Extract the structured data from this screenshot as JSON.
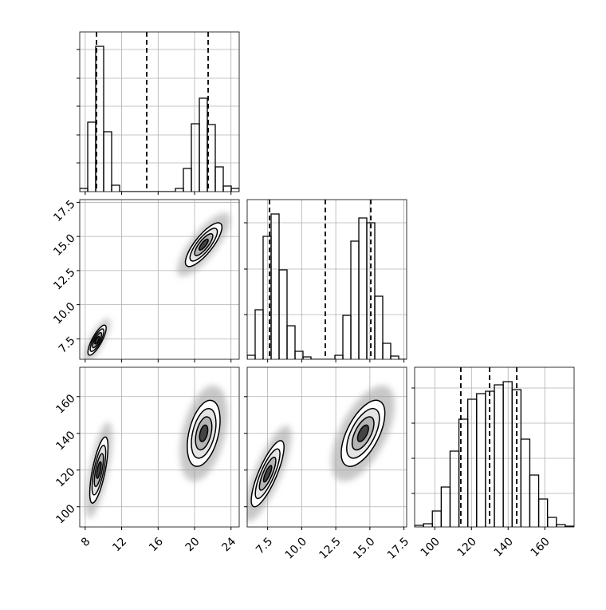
{
  "chart_data": [
    {
      "type": "histogram",
      "xlim": [
        7.4,
        24.9
      ],
      "ylim": [
        0,
        1000
      ],
      "xticks": [
        8,
        12,
        16,
        20,
        24
      ],
      "yticks": [
        180,
        355,
        535,
        710,
        890
      ],
      "bins": [
        7.4,
        8.275,
        9.15,
        10.025,
        10.9,
        11.775,
        12.65,
        13.525,
        14.4,
        15.275,
        16.15,
        17.025,
        17.9,
        18.775,
        19.65,
        20.525,
        21.4,
        22.275,
        23.15,
        24.025,
        24.9
      ],
      "counts": [
        20,
        435,
        910,
        375,
        40,
        0,
        0,
        0,
        0,
        0,
        0,
        0,
        20,
        145,
        425,
        585,
        420,
        155,
        35,
        20
      ],
      "quantiles": [
        9.24,
        14.75,
        21.49
      ],
      "grid": true,
      "color": "#000000"
    },
    {
      "type": "hist2d",
      "xlim": [
        7.4,
        24.9
      ],
      "ylim": [
        6.0,
        17.7
      ],
      "xticks": [
        8,
        12,
        16,
        20,
        24
      ],
      "yticks": [
        7.5,
        {
          "value": 10,
          "label": "10.0"
        },
        12.5,
        {
          "value": 15,
          "label": "15.0"
        },
        17.5
      ],
      "clusters": [
        {
          "x": 9.3,
          "y": 7.4,
          "sx": 0.5,
          "sy": 0.55,
          "corr": 0.8
        },
        {
          "x": 21.0,
          "y": 14.4,
          "sx": 1.0,
          "sy": 0.8,
          "corr": 0.8
        }
      ],
      "grid": true
    },
    {
      "type": "histogram",
      "xlim": [
        6.0,
        17.7
      ],
      "ylim": [
        0,
        1000
      ],
      "xticks": [
        7.5,
        10,
        12.5,
        15,
        17.5
      ],
      "yticks": [
        280,
        565,
        855
      ],
      "bins": [
        6.0,
        6.585,
        7.17,
        7.755,
        8.34,
        8.925,
        9.51,
        10.095,
        10.68,
        11.265,
        11.85,
        12.435,
        13.02,
        13.605,
        14.19,
        14.775,
        15.36,
        15.945,
        16.53,
        17.115,
        17.7
      ],
      "counts": [
        25,
        310,
        770,
        910,
        560,
        210,
        50,
        15,
        0,
        0,
        0,
        25,
        275,
        740,
        885,
        855,
        395,
        100,
        20,
        0
      ],
      "quantiles": [
        7.64,
        11.73,
        15.07
      ],
      "grid": true,
      "color": "#000000"
    },
    {
      "type": "hist2d",
      "xlim": [
        7.4,
        24.9
      ],
      "ylim": [
        89,
        176
      ],
      "xticks": [
        8,
        12,
        16,
        20,
        24
      ],
      "yticks": [
        100,
        120,
        140,
        160
      ],
      "clusters": [
        {
          "x": 9.5,
          "y": 120,
          "sx": 0.5,
          "sy": 9,
          "corr": 0.7
        },
        {
          "x": 21.0,
          "y": 140,
          "sx": 0.9,
          "sy": 9,
          "corr": 0.4
        }
      ],
      "grid": true
    },
    {
      "type": "hist2d",
      "xlim": [
        6.0,
        17.7
      ],
      "ylim": [
        89,
        176
      ],
      "xticks": [
        7.5,
        {
          "value": 10,
          "label": "10.0"
        },
        12.5,
        {
          "value": 15,
          "label": "15.0"
        },
        17.5
      ],
      "yticks": [
        100,
        120,
        140,
        160
      ],
      "clusters": [
        {
          "x": 7.5,
          "y": 118,
          "sx": 0.6,
          "sy": 9,
          "corr": 0.8
        },
        {
          "x": 14.5,
          "y": 140,
          "sx": 0.8,
          "sy": 9,
          "corr": 0.6
        }
      ],
      "grid": true
    },
    {
      "type": "histogram",
      "xlim": [
        89,
        176
      ],
      "ylim": [
        0,
        1000
      ],
      "xticks": [
        100,
        120,
        140,
        160
      ],
      "yticks": [
        210,
        430,
        650,
        870
      ],
      "bins": [
        89,
        93.83,
        98.67,
        103.5,
        108.33,
        113.17,
        118,
        122.83,
        127.67,
        132.5,
        137.33,
        142.17,
        147,
        151.83,
        156.67,
        161.5,
        166.33,
        171.17,
        176
      ],
      "counts": [
        10,
        20,
        100,
        250,
        475,
        675,
        800,
        835,
        850,
        890,
        910,
        860,
        550,
        325,
        175,
        60,
        15,
        5
      ],
      "quantiles": [
        114.2,
        129.9,
        144.7
      ],
      "grid": true,
      "color": "#000000"
    }
  ]
}
